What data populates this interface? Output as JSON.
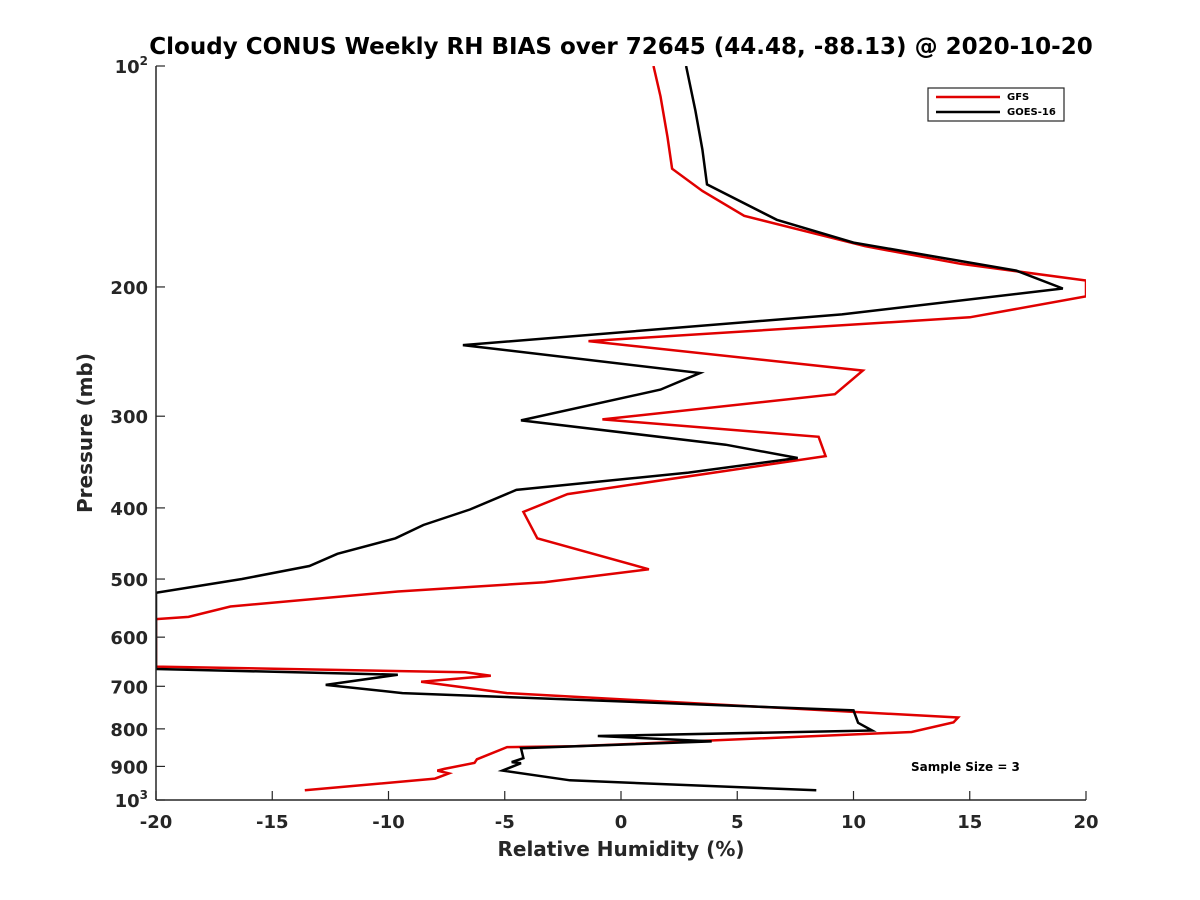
{
  "chart_data": {
    "type": "line",
    "title": "Cloudy CONUS Weekly RH BIAS over 72645 (44.48, -88.13) @ 2020-10-20",
    "xlabel": "Relative Humidity (%)",
    "ylabel": "Pressure (mb)",
    "xlim": [
      -20,
      20
    ],
    "ylim": [
      100,
      1000
    ],
    "y_scale": "log",
    "y_reversed": true,
    "grid": false,
    "legend_position": "top-right",
    "xticks": [
      -20,
      -15,
      -10,
      -5,
      0,
      5,
      10,
      15,
      20
    ],
    "xtick_labels": [
      "-20",
      "-15",
      "-10",
      "-5",
      "0",
      "5",
      "10",
      "15",
      "20"
    ],
    "yticks": [
      {
        "value": 100,
        "label": "10",
        "sup": "2"
      },
      {
        "value": 200,
        "label": "200",
        "sup": ""
      },
      {
        "value": 300,
        "label": "300",
        "sup": ""
      },
      {
        "value": 400,
        "label": "400",
        "sup": ""
      },
      {
        "value": 500,
        "label": "500",
        "sup": ""
      },
      {
        "value": 600,
        "label": "600",
        "sup": ""
      },
      {
        "value": 700,
        "label": "700",
        "sup": ""
      },
      {
        "value": 800,
        "label": "800",
        "sup": ""
      },
      {
        "value": 900,
        "label": "900",
        "sup": ""
      },
      {
        "value": 1000,
        "label": "10",
        "sup": "3"
      }
    ],
    "annotation": "Sample Size = 3",
    "series": [
      {
        "name": "GFS",
        "color": "#e00000",
        "points": [
          [
            1.4,
            100
          ],
          [
            1.7,
            110
          ],
          [
            2.0,
            125
          ],
          [
            2.2,
            138
          ],
          [
            3.5,
            148
          ],
          [
            5.3,
            160
          ],
          [
            10.5,
            176
          ],
          [
            14.6,
            186
          ],
          [
            20.0,
            196
          ],
          [
            20.0,
            206
          ],
          [
            15.0,
            220
          ],
          [
            -1.4,
            237
          ],
          [
            10.4,
            260
          ],
          [
            9.2,
            280
          ],
          [
            -0.8,
            303
          ],
          [
            8.5,
            320
          ],
          [
            8.8,
            340
          ],
          [
            4.0,
            358
          ],
          [
            -2.3,
            383
          ],
          [
            -4.2,
            405
          ],
          [
            -3.6,
            440
          ],
          [
            1.2,
            485
          ],
          [
            -3.3,
            505
          ],
          [
            -9.6,
            520
          ],
          [
            -16.8,
            545
          ],
          [
            -18.6,
            563
          ],
          [
            -20.0,
            567
          ],
          [
            -20.0,
            658
          ],
          [
            -6.7,
            670
          ],
          [
            -5.6,
            677
          ],
          [
            -8.6,
            690
          ],
          [
            -4.9,
            715
          ],
          [
            14.5,
            772
          ],
          [
            14.3,
            784
          ],
          [
            12.5,
            808
          ],
          [
            -2.0,
            845
          ],
          [
            -4.9,
            847
          ],
          [
            -6.2,
            880
          ],
          [
            -6.3,
            890
          ],
          [
            -7.6,
            907
          ],
          [
            -7.9,
            912
          ],
          [
            -7.4,
            920
          ],
          [
            -8.0,
            935
          ],
          [
            -13.6,
            970
          ]
        ]
      },
      {
        "name": "GOES-16",
        "color": "#000000",
        "points": [
          [
            2.8,
            100
          ],
          [
            3.2,
            115
          ],
          [
            3.5,
            130
          ],
          [
            3.7,
            145
          ],
          [
            6.7,
            162
          ],
          [
            10.0,
            174
          ],
          [
            17.0,
            190
          ],
          [
            19.0,
            201
          ],
          [
            9.5,
            218
          ],
          [
            -6.8,
            240
          ],
          [
            3.4,
            262
          ],
          [
            1.7,
            276
          ],
          [
            -4.3,
            304
          ],
          [
            4.5,
            328
          ],
          [
            7.6,
            342
          ],
          [
            2.9,
            358
          ],
          [
            -4.5,
            378
          ],
          [
            -6.5,
            402
          ],
          [
            -8.5,
            422
          ],
          [
            -9.7,
            440
          ],
          [
            -12.2,
            462
          ],
          [
            -13.4,
            480
          ],
          [
            -16.3,
            500
          ],
          [
            -20.0,
            522
          ],
          [
            -20.0,
            663
          ],
          [
            -9.6,
            675
          ],
          [
            -12.7,
            697
          ],
          [
            -9.4,
            715
          ],
          [
            10.0,
            755
          ],
          [
            10.2,
            785
          ],
          [
            10.8,
            804
          ],
          [
            -1.0,
            818
          ],
          [
            3.9,
            832
          ],
          [
            -4.3,
            850
          ],
          [
            -4.2,
            877
          ],
          [
            -4.7,
            888
          ],
          [
            -4.3,
            891
          ],
          [
            -5.1,
            912
          ],
          [
            -2.2,
            940
          ],
          [
            8.4,
            970
          ]
        ]
      }
    ]
  }
}
